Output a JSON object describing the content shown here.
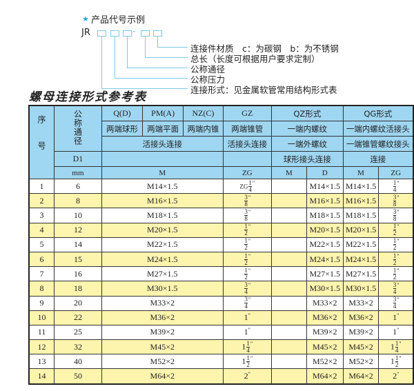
{
  "example": {
    "star_icon": "star-icon",
    "heading": "产品代号示例",
    "prefix": "JR",
    "dash": "-",
    "labels": [
      "连接件材质　c：为碳钢　b：为不锈钢",
      "总长（长度可根据用户要求定制）",
      "公称通径",
      "公称压力",
      "连接形式：见金属软管常用结构形式表"
    ]
  },
  "title": "螺母连接形式参考表",
  "colors": {
    "header_bg": "#9fd6f1",
    "alt_row_bg": "#fdf4ae",
    "accent": "#2aa7d8"
  },
  "table": {
    "header": {
      "seq": "序号",
      "dn": "公称通径",
      "q": "Q(D)",
      "pm": "PM(A)",
      "nz": "NZ(C)",
      "gz": "GZ",
      "qz": "QZ形式",
      "qg": "QG形式",
      "q2": "两端球形",
      "pm2": "两端平面",
      "nz2": "两端内锥",
      "gz2": "两端锥管",
      "qz2": "一端内螺纹",
      "qg2": "一端内螺纹活接头",
      "r3a": "活接头连接",
      "r3b": "活接头连接",
      "qz3": "一端外螺纹",
      "qg3": "一端锥管螺纹接头",
      "d1": "D1",
      "qz4": "球形接头连接",
      "qg4": "连接",
      "mm": "mm",
      "m": "M",
      "zg": "ZG",
      "qzm": "M",
      "qzd": "D",
      "qgm": "M",
      "qgzg": "ZG"
    },
    "rows": [
      {
        "no": "1",
        "dn": "6",
        "m": "M14×1.5",
        "gz": {
          "w": "ZG",
          "n": "1",
          "d": "4",
          "u": "\""
        },
        "qzm": "",
        "qzd": "M14×1.5",
        "qgm": "M14×1.5",
        "qgzg": {
          "w": "",
          "n": "1",
          "d": "4",
          "u": "\""
        }
      },
      {
        "no": "2",
        "dn": "8",
        "m": "M16×1.5",
        "gz": {
          "w": "",
          "n": "3",
          "d": "8",
          "u": "\""
        },
        "qzm": "",
        "qzd": "M16×1.5",
        "qgm": "M16×1.5",
        "qgzg": {
          "w": "",
          "n": "3",
          "d": "8",
          "u": "\""
        }
      },
      {
        "no": "3",
        "dn": "10",
        "m": "M18×1.5",
        "gz": {
          "w": "",
          "n": "3",
          "d": "8",
          "u": "\""
        },
        "qzm": "",
        "qzd": "M18×1.5",
        "qgm": "M18×1.5",
        "qgzg": {
          "w": "",
          "n": "3",
          "d": "8",
          "u": "\""
        }
      },
      {
        "no": "4",
        "dn": "12",
        "m": "M20×1.5",
        "gz": {
          "w": "",
          "n": "1",
          "d": "2",
          "u": "\""
        },
        "qzm": "",
        "qzd": "M20×1.5",
        "qgm": "M20×1.5",
        "qgzg": {
          "w": "",
          "n": "1",
          "d": "2",
          "u": "\""
        }
      },
      {
        "no": "5",
        "dn": "14",
        "m": "M22×1.5",
        "gz": {
          "w": "",
          "n": "1",
          "d": "2",
          "u": "\""
        },
        "qzm": "",
        "qzd": "M22×1.5",
        "qgm": "M22×1.5",
        "qgzg": {
          "w": "",
          "n": "1",
          "d": "2",
          "u": "\""
        }
      },
      {
        "no": "6",
        "dn": "15",
        "m": "M24×1.5",
        "gz": {
          "w": "",
          "n": "1",
          "d": "2",
          "u": "\""
        },
        "qzm": "",
        "qzd": "M24×1.5",
        "qgm": "M24×1.5",
        "qgzg": {
          "w": "",
          "n": "1",
          "d": "2",
          "u": "\""
        }
      },
      {
        "no": "7",
        "dn": "16",
        "m": "M27×1.5",
        "gz": {
          "w": "",
          "n": "1",
          "d": "2",
          "u": "\""
        },
        "qzm": "",
        "qzd": "M27×1.5",
        "qgm": "M27×1.5",
        "qgzg": {
          "w": "",
          "n": "1",
          "d": "2",
          "u": "\""
        }
      },
      {
        "no": "8",
        "dn": "18",
        "m": "M30×1.5",
        "gz": {
          "w": "",
          "n": "3",
          "d": "4",
          "u": "\""
        },
        "qzm": "",
        "qzd": "M30×1.5",
        "qgm": "M30×1.5",
        "qgzg": {
          "w": "",
          "n": "3",
          "d": "4",
          "u": "\""
        }
      },
      {
        "no": "9",
        "dn": "20",
        "m": "M33×2",
        "gz": {
          "w": "",
          "n": "3",
          "d": "4",
          "u": "\""
        },
        "qzm": "",
        "qzd": "M33×2",
        "qgm": "M33×2",
        "qgzg": {
          "w": "",
          "n": "3",
          "d": "4",
          "u": "\""
        }
      },
      {
        "no": "10",
        "dn": "22",
        "m": "M36×2",
        "gz": {
          "w": "1",
          "n": "",
          "d": "",
          "u": "\""
        },
        "qzm": "",
        "qzd": "M36×2",
        "qgm": "M36×2",
        "qgzg": {
          "w": "1",
          "n": "",
          "d": "",
          "u": "\""
        }
      },
      {
        "no": "11",
        "dn": "25",
        "m": "M39×2",
        "gz": {
          "w": "1",
          "n": "",
          "d": "",
          "u": "\""
        },
        "qzm": "",
        "qzd": "M39×2",
        "qgm": "M39×2",
        "qgzg": {
          "w": "1",
          "n": "",
          "d": "",
          "u": "\""
        }
      },
      {
        "no": "12",
        "dn": "32",
        "m": "M45×2",
        "gz": {
          "w": "1",
          "n": "1",
          "d": "4",
          "u": "\""
        },
        "qzm": "",
        "qzd": "M45×2",
        "qgm": "M45×2",
        "qgzg": {
          "w": "1",
          "n": "1",
          "d": "4",
          "u": "\""
        }
      },
      {
        "no": "13",
        "dn": "40",
        "m": "M52×2",
        "gz": {
          "w": "1",
          "n": "1",
          "d": "2",
          "u": "\""
        },
        "qzm": "",
        "qzd": "M52×2",
        "qgm": "M52×2",
        "qgzg": {
          "w": "1",
          "n": "1",
          "d": "2",
          "u": "\""
        }
      },
      {
        "no": "14",
        "dn": "50",
        "m": "M64×2",
        "gz": {
          "w": "2",
          "n": "",
          "d": "",
          "u": "\""
        },
        "qzm": "",
        "qzd": "M64×2",
        "qgm": "M64×2",
        "qgzg": {
          "w": "2",
          "n": "",
          "d": "",
          "u": "\""
        }
      }
    ]
  }
}
